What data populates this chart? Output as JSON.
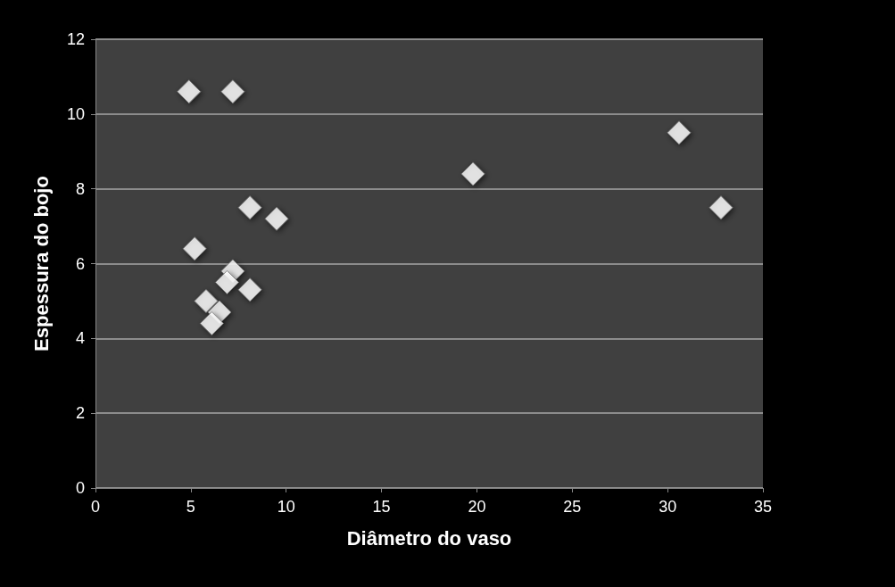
{
  "chart_data": {
    "type": "scatter",
    "xlabel": "Diâmetro do vaso",
    "ylabel": "Espessura do bojo",
    "x": [
      4.9,
      7.2,
      30.6,
      19.8,
      32.8,
      8.1,
      9.5,
      5.2,
      7.2,
      6.9,
      8.1,
      5.8,
      6.5,
      6.1
    ],
    "values": [
      10.6,
      10.6,
      9.5,
      8.4,
      7.5,
      7.5,
      7.2,
      6.4,
      5.8,
      5.5,
      5.3,
      5.0,
      4.7,
      4.4
    ],
    "color": "#ffffff",
    "marker": "diamond",
    "xlim": [
      0,
      35
    ],
    "xticks": [
      0,
      5,
      10,
      15,
      20,
      25,
      30,
      35
    ],
    "ylim": [
      0,
      12
    ],
    "yticks": [
      0,
      2,
      4,
      6,
      8,
      10,
      12
    ],
    "grid": "y"
  }
}
